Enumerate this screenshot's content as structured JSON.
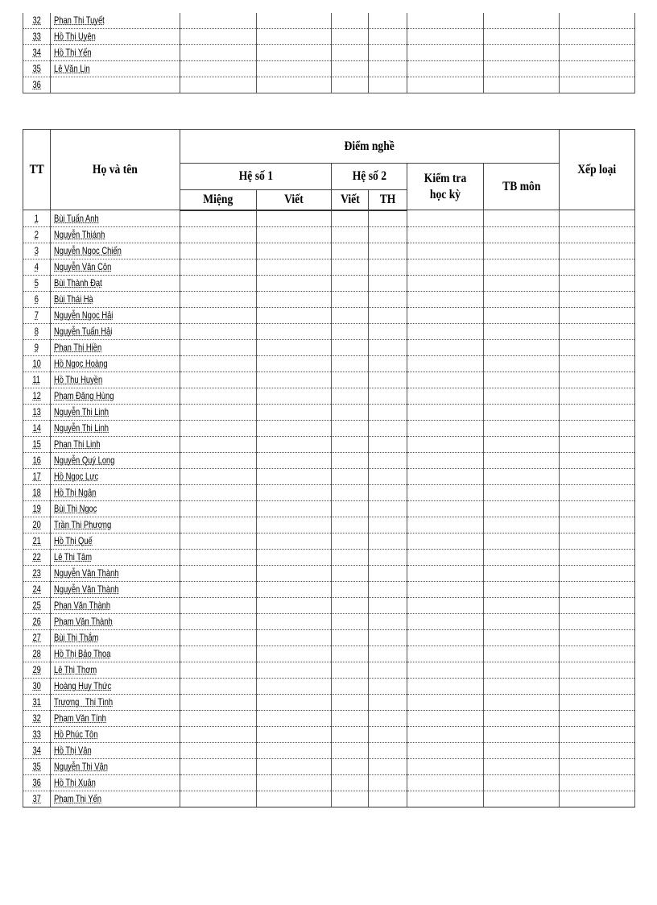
{
  "top_table": {
    "rows": [
      {
        "tt": "32",
        "name": "Phan Thị Tuyết"
      },
      {
        "tt": "33",
        "name": "Hồ Thị Uyên"
      },
      {
        "tt": "34",
        "name": "Hồ Thị Yến"
      },
      {
        "tt": "35",
        "name": "Lê Văn Lin"
      },
      {
        "tt": "36",
        "name": ""
      }
    ]
  },
  "main_table": {
    "headers": {
      "tt": "TT",
      "name": "Họ và tên",
      "group": "Điểm nghề",
      "coef1": "Hệ số 1",
      "coef2": "Hệ số 2",
      "exam": "Kiểm tra học kỳ",
      "avg": "TB môn",
      "rank": "Xếp loại",
      "oral": "Miệng",
      "written1": "Viết",
      "written2": "Viết",
      "practice": "TH"
    },
    "rows": [
      {
        "tt": "1",
        "name": "Bùi Tuấn Anh"
      },
      {
        "tt": "2",
        "name": "Nguyễn Thiánh"
      },
      {
        "tt": "3",
        "name": "Nguyễn Ngọc Chiến"
      },
      {
        "tt": "4",
        "name": "Nguyễn Văn Côn"
      },
      {
        "tt": "5",
        "name": "Bùi Thành Đạt"
      },
      {
        "tt": "6",
        "name": "Bùi Thái Hà"
      },
      {
        "tt": "7",
        "name": "Nguyễn Ngọc Hải"
      },
      {
        "tt": "8",
        "name": "Nguyễn Tuấn Hải"
      },
      {
        "tt": "9",
        "name": "Phan Thị Hiền"
      },
      {
        "tt": "10",
        "name": "Hồ Ngọc Hoàng"
      },
      {
        "tt": "11",
        "name": "Hồ Thu Huyền"
      },
      {
        "tt": "12",
        "name": "Phạm Đăng Hùng"
      },
      {
        "tt": "13",
        "name": "Nguyễn Thị Linh"
      },
      {
        "tt": "14",
        "name": "Nguyễn Thị Linh"
      },
      {
        "tt": "15",
        "name": "Phan Thị Linh"
      },
      {
        "tt": "16",
        "name": "Nguyễn Quý Long"
      },
      {
        "tt": "17",
        "name": "Hồ Ngọc Lực"
      },
      {
        "tt": "18",
        "name": "Hồ Thị Ngân"
      },
      {
        "tt": "19",
        "name": "Bùi Thị Ngọc"
      },
      {
        "tt": "20",
        "name": "Trần Thị Phương"
      },
      {
        "tt": "21",
        "name": "Hồ Thị Quế"
      },
      {
        "tt": "22",
        "name": "Lê Thị Tâm"
      },
      {
        "tt": "23",
        "name": "Nguyễn Văn Thành"
      },
      {
        "tt": "24",
        "name": "Nguyễn Văn Thành"
      },
      {
        "tt": "25",
        "name": "Phan Văn Thành"
      },
      {
        "tt": "26",
        "name": "Phạm Văn Thành"
      },
      {
        "tt": "27",
        "name": "Bùi Thị Thắm"
      },
      {
        "tt": "28",
        "name": "Hồ Thị Bảo Thoa"
      },
      {
        "tt": "29",
        "name": "Lê Thị Thơm"
      },
      {
        "tt": "30",
        "name": "Hoàng Huy Thức"
      },
      {
        "tt": "31",
        "name": "Trương   Thị Tình"
      },
      {
        "tt": "32",
        "name": "Phạm Văn Tính"
      },
      {
        "tt": "33",
        "name": "Hồ Phúc Tôn"
      },
      {
        "tt": "34",
        "name": "Hồ Thị Vân"
      },
      {
        "tt": "35",
        "name": "Nguyễn Thị Vân"
      },
      {
        "tt": "36",
        "name": "Hồ Thị Xuân"
      },
      {
        "tt": "37",
        "name": "Phạm Thị Yến"
      }
    ]
  }
}
